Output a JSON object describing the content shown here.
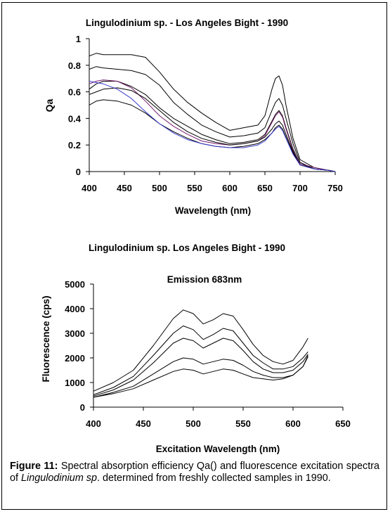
{
  "chart_data": [
    {
      "type": "line",
      "title": "Lingulodinium sp. - Los Angeles Bight - 1990",
      "xlabel": "Wavelength (nm)",
      "ylabel": "Qa",
      "xlim": [
        400,
        750
      ],
      "ylim": [
        0,
        1
      ],
      "xticks": [
        400,
        450,
        500,
        550,
        600,
        650,
        700,
        750
      ],
      "yticks": [
        0,
        0.2,
        0.4,
        0.6,
        0.8,
        1
      ],
      "ytick_labels": [
        "0",
        "0.2",
        "0.4",
        "0.6",
        "0.8",
        "1"
      ],
      "grid": false,
      "series": [
        {
          "color": "#000000",
          "x": [
            400,
            410,
            420,
            440,
            460,
            480,
            500,
            520,
            540,
            560,
            580,
            600,
            620,
            640,
            650,
            660,
            665,
            670,
            675,
            680,
            690,
            700,
            720,
            740,
            750
          ],
          "y": [
            0.87,
            0.89,
            0.88,
            0.88,
            0.88,
            0.86,
            0.75,
            0.62,
            0.52,
            0.44,
            0.37,
            0.31,
            0.33,
            0.35,
            0.42,
            0.62,
            0.7,
            0.72,
            0.65,
            0.5,
            0.25,
            0.09,
            0.03,
            0.01,
            0.0
          ]
        },
        {
          "color": "#000000",
          "x": [
            400,
            410,
            420,
            440,
            460,
            480,
            500,
            520,
            540,
            560,
            580,
            600,
            620,
            640,
            650,
            660,
            665,
            670,
            675,
            680,
            690,
            700,
            720,
            740,
            750
          ],
          "y": [
            0.77,
            0.79,
            0.78,
            0.77,
            0.76,
            0.73,
            0.65,
            0.52,
            0.43,
            0.35,
            0.3,
            0.26,
            0.27,
            0.29,
            0.33,
            0.46,
            0.52,
            0.55,
            0.5,
            0.4,
            0.21,
            0.07,
            0.02,
            0.01,
            0.0
          ]
        },
        {
          "color": "#000000",
          "x": [
            400,
            410,
            420,
            440,
            460,
            480,
            500,
            520,
            540,
            560,
            580,
            600,
            620,
            640,
            650,
            660,
            665,
            670,
            675,
            680,
            690,
            700,
            720,
            740,
            750
          ],
          "y": [
            0.62,
            0.66,
            0.68,
            0.68,
            0.64,
            0.58,
            0.48,
            0.4,
            0.34,
            0.28,
            0.24,
            0.21,
            0.22,
            0.24,
            0.28,
            0.38,
            0.43,
            0.46,
            0.42,
            0.33,
            0.17,
            0.06,
            0.02,
            0.01,
            0.0
          ]
        },
        {
          "color": "#7a1f6e",
          "x": [
            400,
            410,
            420,
            440,
            460,
            480,
            500,
            520,
            540,
            560,
            580,
            600,
            620,
            640,
            650,
            660,
            665,
            670,
            675,
            680,
            690,
            700,
            720,
            740,
            750
          ],
          "y": [
            0.66,
            0.68,
            0.69,
            0.68,
            0.63,
            0.53,
            0.42,
            0.34,
            0.28,
            0.23,
            0.21,
            0.2,
            0.21,
            0.23,
            0.27,
            0.37,
            0.42,
            0.45,
            0.41,
            0.32,
            0.16,
            0.06,
            0.03,
            0.01,
            0.0
          ]
        },
        {
          "color": "#000000",
          "x": [
            400,
            410,
            420,
            440,
            460,
            480,
            500,
            520,
            540,
            560,
            580,
            600,
            620,
            640,
            650,
            660,
            665,
            670,
            675,
            680,
            690,
            700,
            720,
            740,
            750
          ],
          "y": [
            0.58,
            0.6,
            0.62,
            0.63,
            0.61,
            0.55,
            0.46,
            0.37,
            0.3,
            0.25,
            0.22,
            0.2,
            0.21,
            0.23,
            0.26,
            0.32,
            0.36,
            0.38,
            0.35,
            0.28,
            0.15,
            0.05,
            0.02,
            0.01,
            0.0
          ]
        },
        {
          "color": "#000000",
          "x": [
            400,
            410,
            420,
            440,
            460,
            480,
            500,
            520,
            540,
            560,
            580,
            600,
            620,
            640,
            650,
            660,
            665,
            670,
            675,
            680,
            690,
            700,
            720,
            740,
            750
          ],
          "y": [
            0.5,
            0.53,
            0.54,
            0.53,
            0.5,
            0.44,
            0.36,
            0.3,
            0.25,
            0.21,
            0.19,
            0.18,
            0.19,
            0.21,
            0.24,
            0.29,
            0.33,
            0.35,
            0.32,
            0.26,
            0.14,
            0.05,
            0.02,
            0.01,
            0.0
          ]
        },
        {
          "color": "#3a3ad0",
          "x": [
            400,
            410,
            420,
            440,
            460,
            480,
            500,
            520,
            540,
            560,
            580,
            600,
            620,
            640,
            650,
            660,
            665,
            670,
            675,
            680,
            690,
            700,
            720,
            740,
            750
          ],
          "y": [
            0.68,
            0.67,
            0.66,
            0.62,
            0.55,
            0.45,
            0.36,
            0.29,
            0.24,
            0.21,
            0.19,
            0.18,
            0.18,
            0.2,
            0.23,
            0.29,
            0.32,
            0.34,
            0.31,
            0.25,
            0.13,
            0.05,
            0.02,
            0.01,
            0.0
          ]
        }
      ]
    },
    {
      "type": "line",
      "title": "Lingulodinium sp. Los Angeles Bight - 1990",
      "subtitle": "Emission 683nm",
      "xlabel": "Excitation Wavelength (nm)",
      "ylabel": "Fluorescence (cps)",
      "xlim": [
        400,
        650
      ],
      "ylim": [
        0,
        5000
      ],
      "xticks": [
        400,
        450,
        500,
        550,
        600,
        650
      ],
      "yticks": [
        0,
        1000,
        2000,
        3000,
        4000,
        5000
      ],
      "grid": false,
      "series": [
        {
          "color": "#000000",
          "x": [
            400,
            420,
            440,
            460,
            480,
            490,
            500,
            510,
            520,
            530,
            540,
            550,
            560,
            570,
            580,
            590,
            600,
            610,
            615
          ],
          "y": [
            650,
            1000,
            1500,
            2500,
            3600,
            3950,
            3800,
            3380,
            3550,
            3800,
            3700,
            3150,
            2550,
            2100,
            1850,
            1750,
            1900,
            2450,
            2800
          ]
        },
        {
          "color": "#000000",
          "x": [
            400,
            420,
            440,
            460,
            480,
            490,
            500,
            510,
            520,
            530,
            540,
            550,
            560,
            570,
            580,
            590,
            600,
            610,
            615
          ],
          "y": [
            500,
            800,
            1250,
            2100,
            3000,
            3300,
            3150,
            2750,
            2950,
            3200,
            3100,
            2600,
            2100,
            1800,
            1550,
            1550,
            1650,
            2000,
            2250
          ]
        },
        {
          "color": "#000000",
          "x": [
            400,
            420,
            440,
            460,
            480,
            490,
            500,
            510,
            520,
            530,
            540,
            550,
            560,
            570,
            580,
            590,
            600,
            610,
            615
          ],
          "y": [
            450,
            700,
            1100,
            1800,
            2600,
            2800,
            2700,
            2400,
            2600,
            2800,
            2700,
            2300,
            1850,
            1550,
            1400,
            1400,
            1500,
            1850,
            2150
          ]
        },
        {
          "color": "#000000",
          "x": [
            400,
            420,
            440,
            460,
            480,
            490,
            500,
            510,
            520,
            530,
            540,
            550,
            560,
            570,
            580,
            590,
            600,
            610,
            615
          ],
          "y": [
            400,
            600,
            850,
            1350,
            1850,
            2000,
            1950,
            1750,
            1850,
            1950,
            1900,
            1700,
            1450,
            1300,
            1200,
            1200,
            1300,
            1650,
            2050
          ]
        },
        {
          "color": "#000000",
          "x": [
            400,
            420,
            440,
            460,
            480,
            490,
            500,
            510,
            520,
            530,
            540,
            550,
            560,
            570,
            580,
            590,
            600,
            610,
            615
          ],
          "y": [
            400,
            550,
            750,
            1100,
            1450,
            1550,
            1500,
            1350,
            1450,
            1550,
            1500,
            1350,
            1200,
            1150,
            1100,
            1150,
            1300,
            1650,
            2100
          ]
        }
      ]
    }
  ],
  "caption": {
    "label": "Figure 11:",
    "text_before": " Spectral absorption efficiency Qa() and fluorescence excitation spectra of ",
    "species": "Lingulodinium sp",
    "text_after": ". determined from freshly collected samples in 1990."
  }
}
